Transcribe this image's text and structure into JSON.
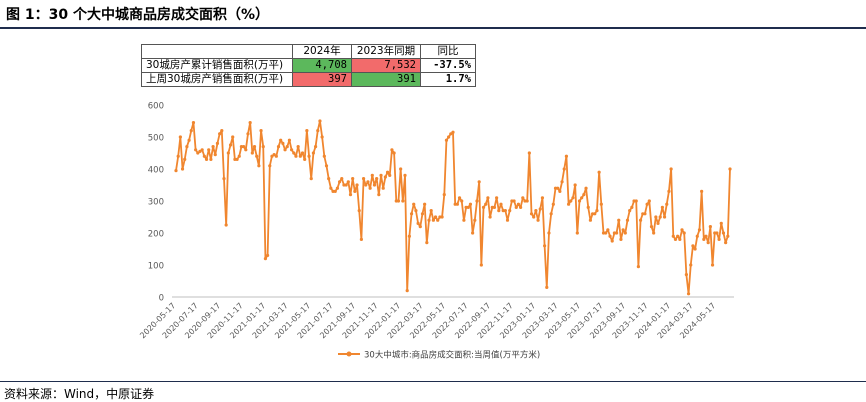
{
  "title": "图 1：30 个大中城商品房成交面积（%）",
  "source": "资料来源：Wind，中原证券",
  "summary_table": {
    "headers": [
      "",
      "2024年",
      "2023年同期",
      "同比"
    ],
    "rows": [
      {
        "label": "30城房产累计销售面积(万平)",
        "v2024": "4,708",
        "v2023": "7,532",
        "yoy": "-37.5%",
        "c2024": "#5cb85c",
        "c2023": "#f26b6b"
      },
      {
        "label": "上周30城房产销售面积(万平)",
        "v2024": "397",
        "v2023": "391",
        "yoy": "1.7%",
        "c2024": "#f26b6b",
        "c2023": "#5cb85c"
      }
    ]
  },
  "chart_data": {
    "type": "line",
    "title": "",
    "xlabel": "",
    "ylabel": "",
    "ylim": [
      0,
      600
    ],
    "yticks": [
      0,
      100,
      200,
      300,
      400,
      500,
      600
    ],
    "grid": false,
    "legend_position": "bottom",
    "x_tick_labels": [
      "2020-05-17",
      "2020-07-17",
      "2020-09-17",
      "2020-11-17",
      "2021-01-17",
      "2021-03-17",
      "2021-05-17",
      "2021-07-17",
      "2021-09-17",
      "2021-11-17",
      "2022-01-17",
      "2022-03-17",
      "2022-05-17",
      "2022-07-17",
      "2022-09-17",
      "2022-11-17",
      "2023-01-17",
      "2023-03-17",
      "2023-05-17",
      "2023-07-17",
      "2023-09-17",
      "2023-11-17",
      "2024-01-17",
      "2024-03-17",
      "2024-05-17"
    ],
    "series": [
      {
        "name": "30大中城市:商品房成交面积:当周值(万平方米)",
        "color": "#f0862f",
        "values": [
          395,
          440,
          500,
          400,
          430,
          470,
          490,
          520,
          545,
          460,
          450,
          455,
          460,
          440,
          430,
          460,
          430,
          470,
          445,
          480,
          510,
          520,
          370,
          225,
          450,
          475,
          500,
          430,
          430,
          440,
          470,
          470,
          460,
          510,
          545,
          450,
          470,
          440,
          410,
          520,
          470,
          120,
          130,
          410,
          440,
          445,
          440,
          470,
          490,
          480,
          460,
          470,
          490,
          460,
          450,
          440,
          470,
          440,
          450,
          430,
          520,
          440,
          370,
          450,
          470,
          520,
          550,
          500,
          440,
          410,
          370,
          340,
          330,
          330,
          340,
          360,
          370,
          350,
          350,
          360,
          320,
          370,
          330,
          350,
          270,
          180,
          370,
          350,
          360,
          340,
          380,
          350,
          370,
          320,
          380,
          340,
          375,
          390,
          380,
          460,
          450,
          300,
          300,
          400,
          300,
          380,
          20,
          190,
          260,
          290,
          270,
          230,
          220,
          260,
          290,
          170,
          240,
          270,
          240,
          250,
          240,
          250,
          250,
          320,
          490,
          500,
          510,
          515,
          290,
          290,
          310,
          300,
          240,
          280,
          280,
          290,
          200,
          240,
          300,
          360,
          100,
          280,
          290,
          310,
          250,
          280,
          280,
          310,
          270,
          290,
          270,
          270,
          240,
          270,
          300,
          300,
          280,
          290,
          280,
          310,
          300,
          300,
          450,
          260,
          250,
          270,
          240,
          275,
          310,
          160,
          30,
          200,
          260,
          290,
          340,
          340,
          330,
          360,
          400,
          440,
          290,
          300,
          310,
          350,
          200,
          300,
          310,
          320,
          340,
          280,
          240,
          260,
          260,
          270,
          390,
          290,
          200,
          200,
          210,
          190,
          175,
          200,
          200,
          240,
          180,
          210,
          200,
          240,
          270,
          280,
          300,
          300,
          95,
          240,
          260,
          260,
          290,
          300,
          220,
          200,
          250,
          230,
          250,
          280,
          250,
          290,
          330,
          400,
          190,
          180,
          190,
          180,
          210,
          200,
          70,
          10,
          100,
          160,
          150,
          190,
          210,
          330,
          180,
          190,
          170,
          220,
          100,
          200,
          200,
          180,
          230,
          200,
          170,
          190,
          400
        ]
      }
    ]
  }
}
